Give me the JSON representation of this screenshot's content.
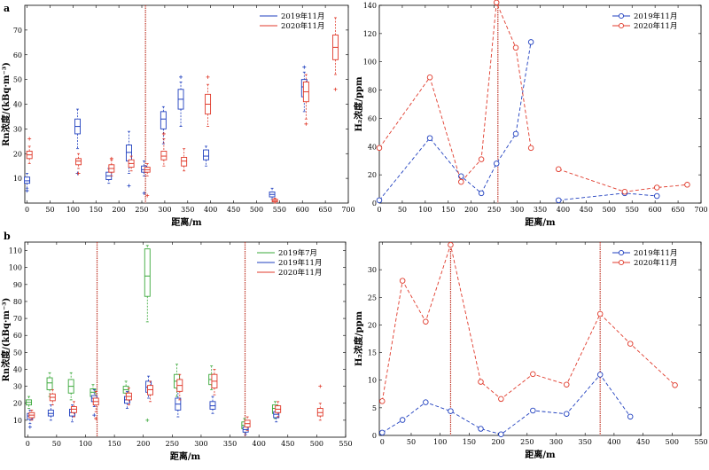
{
  "panel_labels": {
    "a": "a",
    "b": "b"
  },
  "chart_data": [
    {
      "id": "a-rn",
      "type": "box",
      "xlabel": "距离/m",
      "ylabel": "Rn浓度/(kBq·m⁻³)",
      "xlim": [
        -5,
        700
      ],
      "ylim": [
        0,
        80
      ],
      "xticks": [
        0,
        50,
        100,
        150,
        200,
        250,
        300,
        350,
        400,
        450,
        500,
        550,
        600,
        650,
        700
      ],
      "yticks": [
        10,
        20,
        30,
        40,
        50,
        60,
        70
      ],
      "vlines": [
        258
      ],
      "legend": {
        "position": "top-right"
      },
      "series": [
        {
          "name": "2019年11月",
          "color": "#1f3fbf",
          "boxes": [
            {
              "x": 0,
              "q1": 8,
              "med": 9,
              "q3": 10.5,
              "lo": 6,
              "hi": 12,
              "out": [
                5
              ]
            },
            {
              "x": 110,
              "q1": 28,
              "med": 31,
              "q3": 34,
              "lo": 22,
              "hi": 38,
              "out": [
                12
              ]
            },
            {
              "x": 178,
              "q1": 9.5,
              "med": 11,
              "q3": 12.5,
              "lo": 8,
              "hi": 14,
              "out": []
            },
            {
              "x": 222,
              "q1": 17,
              "med": 20.5,
              "q3": 23.5,
              "lo": 12,
              "hi": 29,
              "out": [
                7
              ]
            },
            {
              "x": 255,
              "q1": 12.5,
              "med": 13.5,
              "q3": 15,
              "lo": 11,
              "hi": 17,
              "out": [
                4
              ]
            },
            {
              "x": 297,
              "q1": 30,
              "med": 34,
              "q3": 37,
              "lo": 24,
              "hi": 39,
              "out": []
            },
            {
              "x": 335,
              "q1": 38,
              "med": 42,
              "q3": 46,
              "lo": 31,
              "hi": 49,
              "out": [
                51
              ]
            },
            {
              "x": 390,
              "q1": 17.5,
              "med": 19,
              "q3": 21.5,
              "lo": 15,
              "hi": 23,
              "out": []
            },
            {
              "x": 534,
              "q1": 2.5,
              "med": 3.5,
              "q3": 4.5,
              "lo": 1.5,
              "hi": 6,
              "out": []
            },
            {
              "x": 604,
              "q1": 43,
              "med": 47,
              "q3": 50,
              "lo": 37,
              "hi": 53,
              "out": [
                55
              ]
            }
          ]
        },
        {
          "name": "2020年11月",
          "color": "#e03a2b",
          "boxes": [
            {
              "x": 5,
              "q1": 18,
              "med": 19.5,
              "q3": 21,
              "lo": 16,
              "hi": 23,
              "out": [
                26
              ]
            },
            {
              "x": 112,
              "q1": 15.5,
              "med": 17,
              "q3": 18,
              "lo": 14,
              "hi": 20,
              "out": [
                12
              ]
            },
            {
              "x": 184,
              "q1": 12.5,
              "med": 14,
              "q3": 15.5,
              "lo": 11,
              "hi": 17.5,
              "out": [
                18
              ]
            },
            {
              "x": 227,
              "q1": 14.5,
              "med": 16,
              "q3": 17.5,
              "lo": 13,
              "hi": 19,
              "out": []
            },
            {
              "x": 262,
              "q1": 12.5,
              "med": 13.5,
              "q3": 14.5,
              "lo": 11,
              "hi": 16,
              "out": [
                3
              ]
            },
            {
              "x": 298,
              "q1": 17.5,
              "med": 19,
              "q3": 21,
              "lo": 15,
              "hi": 26,
              "out": [
                28
              ]
            },
            {
              "x": 342,
              "q1": 15,
              "med": 17,
              "q3": 18.5,
              "lo": 13,
              "hi": 22,
              "out": []
            },
            {
              "x": 394,
              "q1": 36,
              "med": 40,
              "q3": 44,
              "lo": 31,
              "hi": 48,
              "out": [
                51
              ]
            },
            {
              "x": 540,
              "q1": 0.5,
              "med": 1,
              "q3": 1.5,
              "lo": 0,
              "hi": 2,
              "out": []
            },
            {
              "x": 608,
              "q1": 41,
              "med": 45,
              "q3": 49,
              "lo": 34,
              "hi": 52,
              "out": [
                32
              ]
            },
            {
              "x": 672,
              "q1": 58,
              "med": 63,
              "q3": 68,
              "lo": 52,
              "hi": 75,
              "out": [
                46
              ]
            }
          ]
        }
      ]
    },
    {
      "id": "a-h2",
      "type": "line",
      "xlabel": "距离/m",
      "ylabel": "H₂浓度/ppm",
      "xlim": [
        0,
        700
      ],
      "ylim": [
        0,
        140
      ],
      "xticks": [
        0,
        50,
        100,
        150,
        200,
        250,
        300,
        350,
        400,
        450,
        500,
        550,
        600,
        650,
        700
      ],
      "yticks": [
        0,
        20,
        40,
        60,
        80,
        100,
        120,
        140
      ],
      "vlines": [
        258
      ],
      "legend": {
        "position": "top-right"
      },
      "series": [
        {
          "name": "2019年11月",
          "color": "#1f3fbf",
          "segments": [
            [
              [
                0,
                2
              ],
              [
                110,
                46
              ],
              [
                178,
                19
              ],
              [
                222,
                7
              ],
              [
                255,
                28
              ],
              [
                297,
                49
              ],
              [
                330,
                114
              ]
            ],
            [
              [
                390,
                2
              ],
              [
                534,
                7
              ],
              [
                604,
                5
              ]
            ]
          ]
        },
        {
          "name": "2020年11月",
          "color": "#e03a2b",
          "segments": [
            [
              [
                0,
                39
              ],
              [
                110,
                89
              ],
              [
                178,
                15
              ],
              [
                222,
                31
              ],
              [
                255,
                142
              ],
              [
                297,
                110
              ],
              [
                330,
                39
              ]
            ],
            [
              [
                390,
                24
              ],
              [
                534,
                8
              ],
              [
                604,
                11
              ],
              [
                670,
                13
              ]
            ]
          ]
        }
      ]
    },
    {
      "id": "b-rn",
      "type": "box",
      "xlabel": "距离/m",
      "ylabel": "Rn浓度/(kBq·m⁻³)",
      "xlim": [
        -5,
        550
      ],
      "ylim": [
        0,
        115
      ],
      "xticks": [
        0,
        50,
        100,
        150,
        200,
        250,
        300,
        350,
        400,
        450,
        500,
        550
      ],
      "yticks": [
        10,
        20,
        30,
        40,
        50,
        60,
        70,
        80,
        90,
        100,
        110
      ],
      "vlines": [
        120,
        376
      ],
      "legend": {
        "position": "top-right"
      },
      "series": [
        {
          "name": "2019年7月",
          "color": "#3aa83a",
          "boxes": [
            {
              "x": 2,
              "q1": 19,
              "med": 20.5,
              "q3": 22,
              "lo": 17,
              "hi": 24,
              "out": []
            },
            {
              "x": 38,
              "q1": 28,
              "med": 32,
              "q3": 35,
              "lo": 24,
              "hi": 38,
              "out": []
            },
            {
              "x": 75,
              "q1": 26,
              "med": 30,
              "q3": 34,
              "lo": 22,
              "hi": 38,
              "out": []
            },
            {
              "x": 113,
              "q1": 24,
              "med": 26.5,
              "q3": 28.5,
              "lo": 21,
              "hi": 31,
              "out": []
            },
            {
              "x": 170,
              "q1": 26,
              "med": 28,
              "q3": 30,
              "lo": 22,
              "hi": 33,
              "out": []
            },
            {
              "x": 207,
              "q1": 83,
              "med": 95,
              "q3": 111,
              "lo": 68,
              "hi": 113,
              "out": [
                10
              ]
            },
            {
              "x": 258,
              "q1": 29,
              "med": 33,
              "q3": 37,
              "lo": 24,
              "hi": 43,
              "out": []
            },
            {
              "x": 318,
              "q1": 31,
              "med": 34,
              "q3": 37,
              "lo": 28,
              "hi": 42,
              "out": []
            },
            {
              "x": 375,
              "q1": 5,
              "med": 7,
              "q3": 9,
              "lo": 3,
              "hi": 11,
              "out": []
            },
            {
              "x": 428,
              "q1": 14,
              "med": 17,
              "q3": 19,
              "lo": 11,
              "hi": 21,
              "out": []
            }
          ]
        },
        {
          "name": "2019年11月",
          "color": "#1f3fbf",
          "boxes": [
            {
              "x": 4,
              "q1": 10.5,
              "med": 12.5,
              "q3": 14,
              "lo": 8,
              "hi": 16,
              "out": [
                6
              ]
            },
            {
              "x": 40,
              "q1": 12.5,
              "med": 14,
              "q3": 16,
              "lo": 10,
              "hi": 19,
              "out": []
            },
            {
              "x": 77,
              "q1": 12.5,
              "med": 14.5,
              "q3": 16.5,
              "lo": 9,
              "hi": 19,
              "out": []
            },
            {
              "x": 115,
              "q1": 21,
              "med": 23,
              "q3": 24.5,
              "lo": 18,
              "hi": 28,
              "out": [
                13
              ]
            },
            {
              "x": 172,
              "q1": 20,
              "med": 22,
              "q3": 24,
              "lo": 17,
              "hi": 27,
              "out": []
            },
            {
              "x": 209,
              "q1": 26.5,
              "med": 29.5,
              "q3": 33,
              "lo": 23,
              "hi": 36,
              "out": []
            },
            {
              "x": 260,
              "q1": 16,
              "med": 19.5,
              "q3": 23,
              "lo": 12,
              "hi": 28,
              "out": []
            },
            {
              "x": 320,
              "q1": 16.5,
              "med": 18.5,
              "q3": 21,
              "lo": 14,
              "hi": 24,
              "out": []
            },
            {
              "x": 377,
              "q1": 3,
              "med": 4.5,
              "q3": 6,
              "lo": 1.5,
              "hi": 8,
              "out": []
            },
            {
              "x": 430,
              "q1": 11.5,
              "med": 13.5,
              "q3": 15,
              "lo": 9,
              "hi": 18,
              "out": []
            }
          ]
        },
        {
          "name": "2020年11月",
          "color": "#e03a2b",
          "boxes": [
            {
              "x": 7,
              "q1": 11.5,
              "med": 13,
              "q3": 14.5,
              "lo": 10,
              "hi": 16,
              "out": []
            },
            {
              "x": 43,
              "q1": 21.5,
              "med": 23.5,
              "q3": 25.5,
              "lo": 19,
              "hi": 28,
              "out": []
            },
            {
              "x": 80,
              "q1": 14.5,
              "med": 16.5,
              "q3": 18,
              "lo": 12,
              "hi": 21,
              "out": []
            },
            {
              "x": 118,
              "q1": 19,
              "med": 21,
              "q3": 23,
              "lo": 15,
              "hi": 27,
              "out": [
                11
              ]
            },
            {
              "x": 175,
              "q1": 22,
              "med": 24,
              "q3": 26,
              "lo": 19,
              "hi": 29,
              "out": []
            },
            {
              "x": 212,
              "q1": 25,
              "med": 28,
              "q3": 30.5,
              "lo": 21,
              "hi": 33,
              "out": []
            },
            {
              "x": 263,
              "q1": 27,
              "med": 30.5,
              "q3": 34,
              "lo": 22,
              "hi": 37,
              "out": []
            },
            {
              "x": 323,
              "q1": 29,
              "med": 33,
              "q3": 37,
              "lo": 25,
              "hi": 40,
              "out": []
            },
            {
              "x": 380,
              "q1": 6,
              "med": 8,
              "q3": 10,
              "lo": 4,
              "hi": 12,
              "out": []
            },
            {
              "x": 433,
              "q1": 14.5,
              "med": 16.5,
              "q3": 18.5,
              "lo": 12,
              "hi": 21,
              "out": []
            },
            {
              "x": 506,
              "q1": 12.5,
              "med": 14.5,
              "q3": 17,
              "lo": 10,
              "hi": 20,
              "out": [
                30
              ]
            }
          ]
        }
      ]
    },
    {
      "id": "b-h2",
      "type": "line",
      "xlabel": "距离/m",
      "ylabel": "H₂浓度/ppm",
      "xlim": [
        -5,
        550
      ],
      "ylim": [
        0,
        35
      ],
      "xticks": [
        0,
        50,
        100,
        150,
        200,
        250,
        300,
        350,
        400,
        450,
        500,
        550
      ],
      "yticks": [
        0,
        5,
        10,
        15,
        20,
        25,
        30
      ],
      "vlines": [
        118,
        376
      ],
      "legend": {
        "position": "top-right"
      },
      "series": [
        {
          "name": "2019年11月",
          "color": "#1f3fbf",
          "segments": [
            [
              [
                0,
                0.5
              ],
              [
                35,
                2.8
              ],
              [
                75,
                6
              ],
              [
                118,
                4.4
              ],
              [
                170,
                1.2
              ],
              [
                205,
                0.2
              ],
              [
                260,
                4.5
              ],
              [
                318,
                3.9
              ],
              [
                376,
                11
              ],
              [
                428,
                3.4
              ]
            ]
          ]
        },
        {
          "name": "2020年11月",
          "color": "#e03a2b",
          "segments": [
            [
              [
                0,
                6.2
              ],
              [
                35,
                28
              ],
              [
                75,
                20.6
              ],
              [
                118,
                34.5
              ],
              [
                170,
                9.7
              ],
              [
                205,
                6.6
              ],
              [
                260,
                11.1
              ],
              [
                318,
                9.2
              ],
              [
                376,
                22
              ],
              [
                428,
                16.6
              ],
              [
                505,
                9.1
              ]
            ]
          ]
        }
      ]
    }
  ]
}
